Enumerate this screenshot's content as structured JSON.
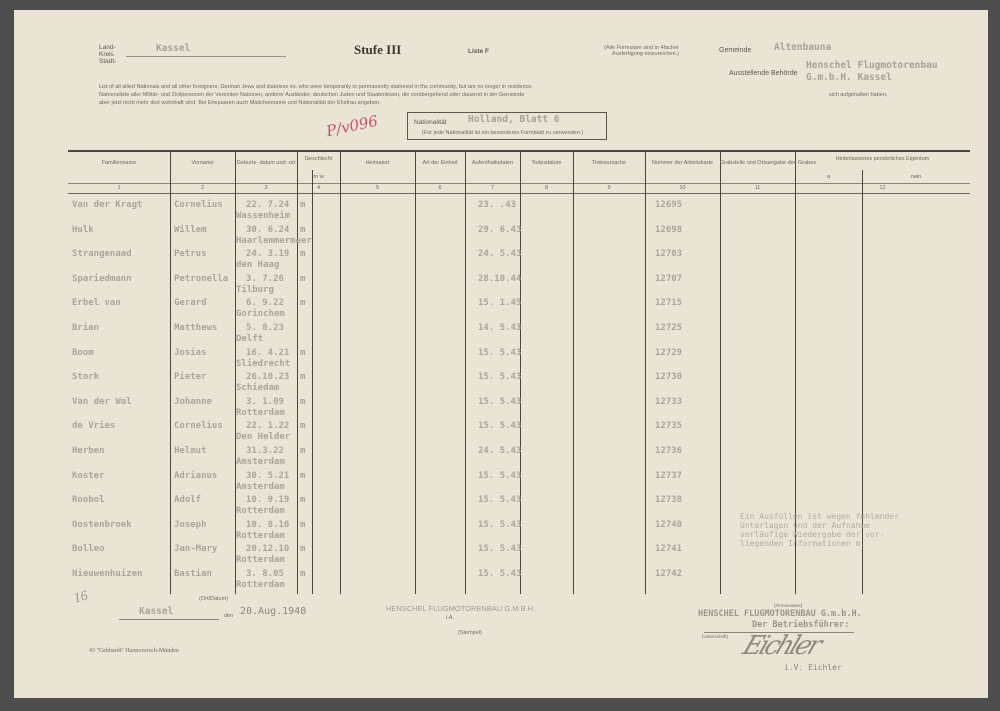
{
  "header": {
    "land_kreis_stadt_label": "Land- Kreis Stadt-",
    "kreis_value": "Kassel",
    "stufe": "Stufe III",
    "liste": "Liste F",
    "note": "(Alle Formulare sind in 4facher Ausfertigung einzureichen.)",
    "gemeinde_label": "Gemeinde",
    "gemeinde_value": "Altenbauna",
    "behoerde_label": "Ausstellende Behörde",
    "behoerde_value_1": "Henschel Flugmotorenbau",
    "behoerde_value_2": "G.m.b.H. Kassel",
    "instruction_1": "List of all allied Nationals and all other foreigners, German Jews and stateless ex. who were temporarily or permanently stationed in the community, but are no longer in residence.",
    "instruction_2": "Namensliste aller Militär- und Zivilpersonen der Vereinten Nationen, anderer Ausländer, deutschen Juden und Staatenlosen, die vorübergehend oder dauernd in der Gemeinde",
    "instruction_2_end": "sich aufgehalten haben,",
    "instruction_3": "aber jetzt nicht mehr dort wohnhaft sind. Bei Ehepaaren auch Mädchenname und Nationalität der Ehefrau angeben.",
    "red_mark": "P/v096",
    "nationalitaet_label": "Nationalität",
    "nationalitaet_value": "Holland, Blatt 6",
    "nationalitaet_note": "(Für jede Nationalität ist ein besonderes Formblatt zu verwenden.)"
  },
  "table": {
    "columns": [
      {
        "label": "Familienname",
        "num": "1"
      },
      {
        "label": "Vorname",
        "num": "2"
      },
      {
        "label": "Geburts- datum und -ort",
        "num": "3"
      },
      {
        "label": "Geschlecht",
        "sub": "m    w",
        "num": "4"
      },
      {
        "label": "Heimatort",
        "num": "5"
      },
      {
        "label": "Art der Einheit",
        "num": "6"
      },
      {
        "label": "Aufenthaltsdaten",
        "num": "7"
      },
      {
        "label": "Todesdatum",
        "num": "8"
      },
      {
        "label": "Todesursache",
        "num": "9"
      },
      {
        "label": "Nummer der Arbeitskarte",
        "num": "10"
      },
      {
        "label": "Grabstelle und Ortsangabe des Grabes",
        "num": "11"
      },
      {
        "label": "Hinterlassenes persönliches Eigentum",
        "sub_a": "a",
        "sub_b": "nein",
        "num": "12"
      }
    ],
    "rows": [
      {
        "familienname": "Van der Kragt",
        "vorname": "Cornelius",
        "geb_datum": "22. 7.24",
        "geb_ort": "Wassenheim",
        "geschlecht": "m",
        "datum": "23.  .43",
        "nummer": "12695"
      },
      {
        "familienname": "Hulk",
        "vorname": "Willem",
        "geb_datum": "30. 6.24",
        "geb_ort": "Haarlemmermeer",
        "geschlecht": "m",
        "datum": "29. 6.43",
        "nummer": "12698"
      },
      {
        "familienname": "Strangenaad",
        "vorname": "Petrus",
        "geb_datum": "24. 3.19",
        "geb_ort": "den Haag",
        "geschlecht": "m",
        "datum": "24. 5.43",
        "nummer": "12703"
      },
      {
        "familienname": "Spariedmann",
        "vorname": "Petronella",
        "geb_datum": "3. 7.26",
        "geb_ort": "Tilburg",
        "geschlecht": "m",
        "datum": "28.10.44",
        "nummer": "12707"
      },
      {
        "familienname": "Erbel van",
        "vorname": "Gerard",
        "geb_datum": "6. 9.22",
        "geb_ort": "Gorinchem",
        "geschlecht": "m",
        "datum": "15. 1.45",
        "nummer": "12715"
      },
      {
        "familienname": "Brian",
        "vorname": "Matthews",
        "geb_datum": "5. 8.23",
        "geb_ort": "Delft",
        "geschlecht": "",
        "datum": "14. 5.43",
        "nummer": "12725"
      },
      {
        "familienname": "Boom",
        "vorname": "Josias",
        "geb_datum": "16. 4.21",
        "geb_ort": "Sliedrecht",
        "geschlecht": "m",
        "datum": "15. 5.43",
        "nummer": "12729"
      },
      {
        "familienname": "Stork",
        "vorname": "Pieter",
        "geb_datum": "26.10.23",
        "geb_ort": "Schiedam",
        "geschlecht": "m",
        "datum": "15. 5.43",
        "nummer": "12730"
      },
      {
        "familienname": "Van der Wal",
        "vorname": "Johanne",
        "geb_datum": "3. 1.09",
        "geb_ort": "Rotterdam",
        "geschlecht": "m",
        "datum": "15. 5.43",
        "nummer": "12733"
      },
      {
        "familienname": "de Vries",
        "vorname": "Cornelius",
        "geb_datum": "22. 1.22",
        "geb_ort": "Den Helder",
        "geschlecht": "m",
        "datum": "15. 5.43",
        "nummer": "12735"
      },
      {
        "familienname": "Herben",
        "vorname": "Helmut",
        "geb_datum": "31.3.22",
        "geb_ort": "Amsterdam",
        "geschlecht": "m",
        "datum": "24. 5.43",
        "nummer": "12736"
      },
      {
        "familienname": "Koster",
        "vorname": "Adrianus",
        "geb_datum": "30. 5.21",
        "geb_ort": "Amsterdam",
        "geschlecht": "m",
        "datum": "15. 5.43",
        "nummer": "12737"
      },
      {
        "familienname": "Roobol",
        "vorname": "Adolf",
        "geb_datum": "10. 9.19",
        "geb_ort": "Rotterdam",
        "geschlecht": "m",
        "datum": "15. 5.43",
        "nummer": "12738"
      },
      {
        "familienname": "Oostenbroek",
        "vorname": "Joseph",
        "geb_datum": "10. 8.16",
        "geb_ort": "Rotterdam",
        "geschlecht": "m",
        "datum": "15. 5.43",
        "nummer": "12740"
      },
      {
        "familienname": "Bolleo",
        "vorname": "Jan-Mary",
        "geb_datum": "20.12.10",
        "geb_ort": "Rotterdam",
        "geschlecht": "m",
        "datum": "15. 5.43",
        "nummer": "12741"
      },
      {
        "familienname": "Nieuwenhuizen",
        "vorname": "Bastian",
        "geb_datum": "3. 8.05",
        "geb_ort": "Rotterdam",
        "geschlecht": "m",
        "datum": "15. 5.43",
        "nummer": "12742"
      }
    ],
    "stamp_note": [
      "Ein Ausfüllen ist wegen fehlender",
      "Unterlagen und der Aufnahme",
      "vorläufige Wiedergabe der vor-",
      "liegenden Informationen m."
    ]
  },
  "footer": {
    "ort_label": "(Ort/Datum)",
    "ort_value": "Kassel",
    "den": "den",
    "datum_stamp": "20.Aug.1948",
    "company_print": "HENSCHEL FLUGMOTORENBAU G.M.B.H.",
    "ia": "i.A.",
    "stempel_label": "(Stempel)",
    "firma_label": "(Firmenname)",
    "company_stamp_1": "HENSCHEL FLUGMOTORENBAU G.m.b.H.",
    "company_stamp_2": "Der Betriebsführer:",
    "unterschrift_label": "(Unterschrift)",
    "signature": "Eichler",
    "signer": "i.V. Eichler",
    "handwritten_number": "16",
    "printer_note": "43 \"Gebhardt\" Hannoversch-Münden"
  }
}
